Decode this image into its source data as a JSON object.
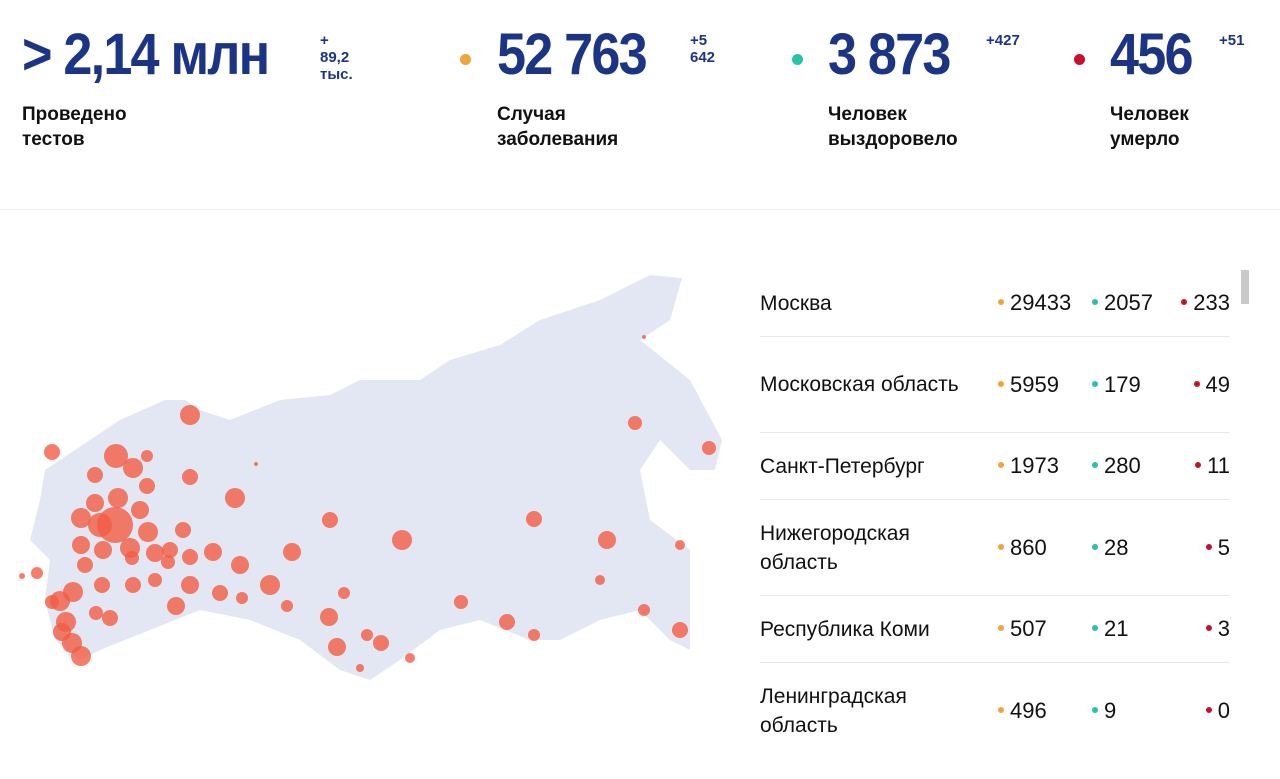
{
  "colors": {
    "primary": "#1b3486",
    "cases": "#f0a53a",
    "recovered": "#26c3a8",
    "deaths": "#c8102e",
    "map_fill": "#e2e7f3",
    "bubble": "#f25c44"
  },
  "stats": [
    {
      "value": "> 2,14 млн",
      "delta": "+ 89,2 тыс.",
      "label": "Проведено тестов"
    },
    {
      "value": "52 763",
      "delta": "+5 642",
      "label": "Случая заболевания",
      "dot": "cases"
    },
    {
      "value": "3 873",
      "delta": "+427",
      "label": "Человек выздоровело",
      "dot": "recovered"
    },
    {
      "value": "456",
      "delta": "+51",
      "label": "Человек умерло",
      "dot": "deaths"
    }
  ],
  "regions": [
    {
      "name": "Москва",
      "cases": "29433",
      "recovered": "2057",
      "deaths": "233"
    },
    {
      "name": "Московская область",
      "cases": "5959",
      "recovered": "179",
      "deaths": "49"
    },
    {
      "name": "Санкт-Петербург",
      "cases": "1973",
      "recovered": "280",
      "deaths": "11"
    },
    {
      "name": "Нижегородская область",
      "cases": "860",
      "recovered": "28",
      "deaths": "5"
    },
    {
      "name": "Республика Коми",
      "cases": "507",
      "recovered": "21",
      "deaths": "3"
    },
    {
      "name": "Ленинградская область",
      "cases": "496",
      "recovered": "9",
      "deaths": "0"
    }
  ]
}
